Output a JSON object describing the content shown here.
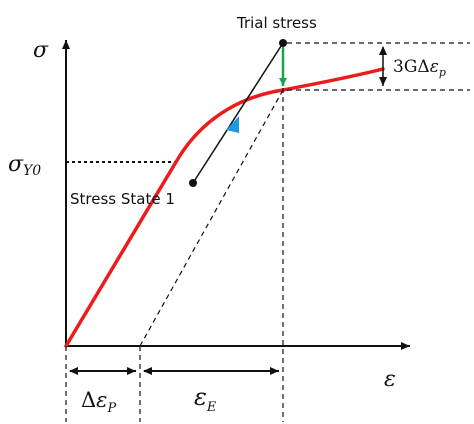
{
  "axes": {
    "y_symbol": "σ",
    "x_symbol": "ε"
  },
  "yield_label": {
    "main": "σ",
    "subscript": "Y0"
  },
  "annotations": {
    "trial_stress": "Trial stress",
    "stress_state_1": "Stress State 1"
  },
  "dimensions": {
    "three_g_prefix": "3GΔ",
    "three_g_eps": "ε",
    "three_g_sub": "p",
    "delta_prefix": "Δ",
    "delta_eps": "ε",
    "delta_sub": "P",
    "elastic_eps": "ε",
    "elastic_sub": "E"
  },
  "colors": {
    "curve": "#ee1b1b",
    "return_arrow": "#1aa34a",
    "direction_marker": "#1e9be0",
    "lines": "#111111"
  }
}
